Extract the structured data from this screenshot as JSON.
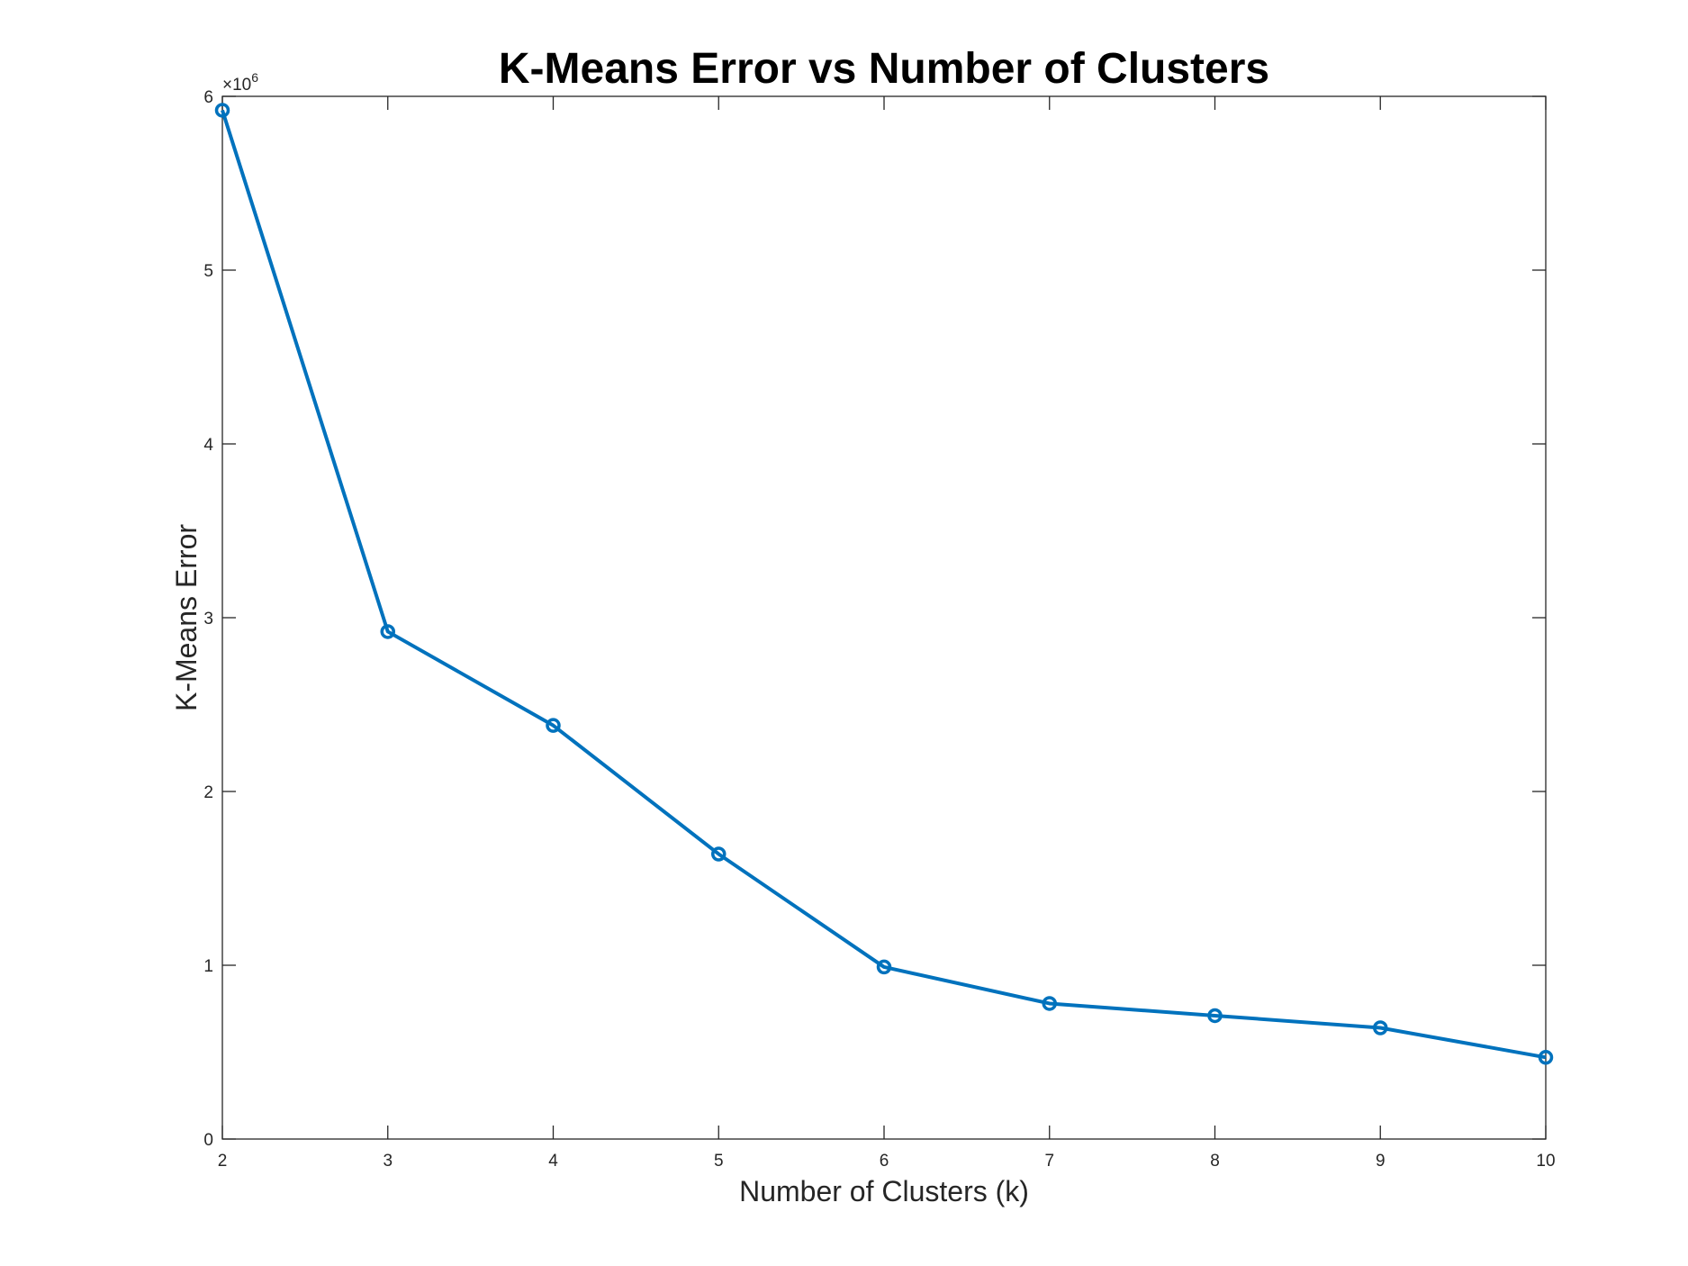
{
  "chart_data": {
    "type": "line",
    "title": "K-Means Error vs Number of Clusters",
    "xlabel": "Number of Clusters (k)",
    "ylabel": "K-Means Error",
    "y_exponent": "×10",
    "y_exponent_power": "6",
    "x": [
      2,
      3,
      4,
      5,
      6,
      7,
      8,
      9,
      10
    ],
    "y": [
      5.92,
      2.92,
      2.38,
      1.64,
      0.99,
      0.78,
      0.71,
      0.64,
      0.47
    ],
    "y_multiplier": 1000000,
    "xlim": [
      2,
      10
    ],
    "ylim": [
      0,
      6
    ],
    "xticks": [
      "2",
      "3",
      "4",
      "5",
      "6",
      "7",
      "8",
      "9",
      "10"
    ],
    "yticks": [
      "0",
      "1",
      "2",
      "3",
      "4",
      "5",
      "6"
    ],
    "grid": false,
    "line_color": "#0072BD",
    "marker": "circle"
  }
}
